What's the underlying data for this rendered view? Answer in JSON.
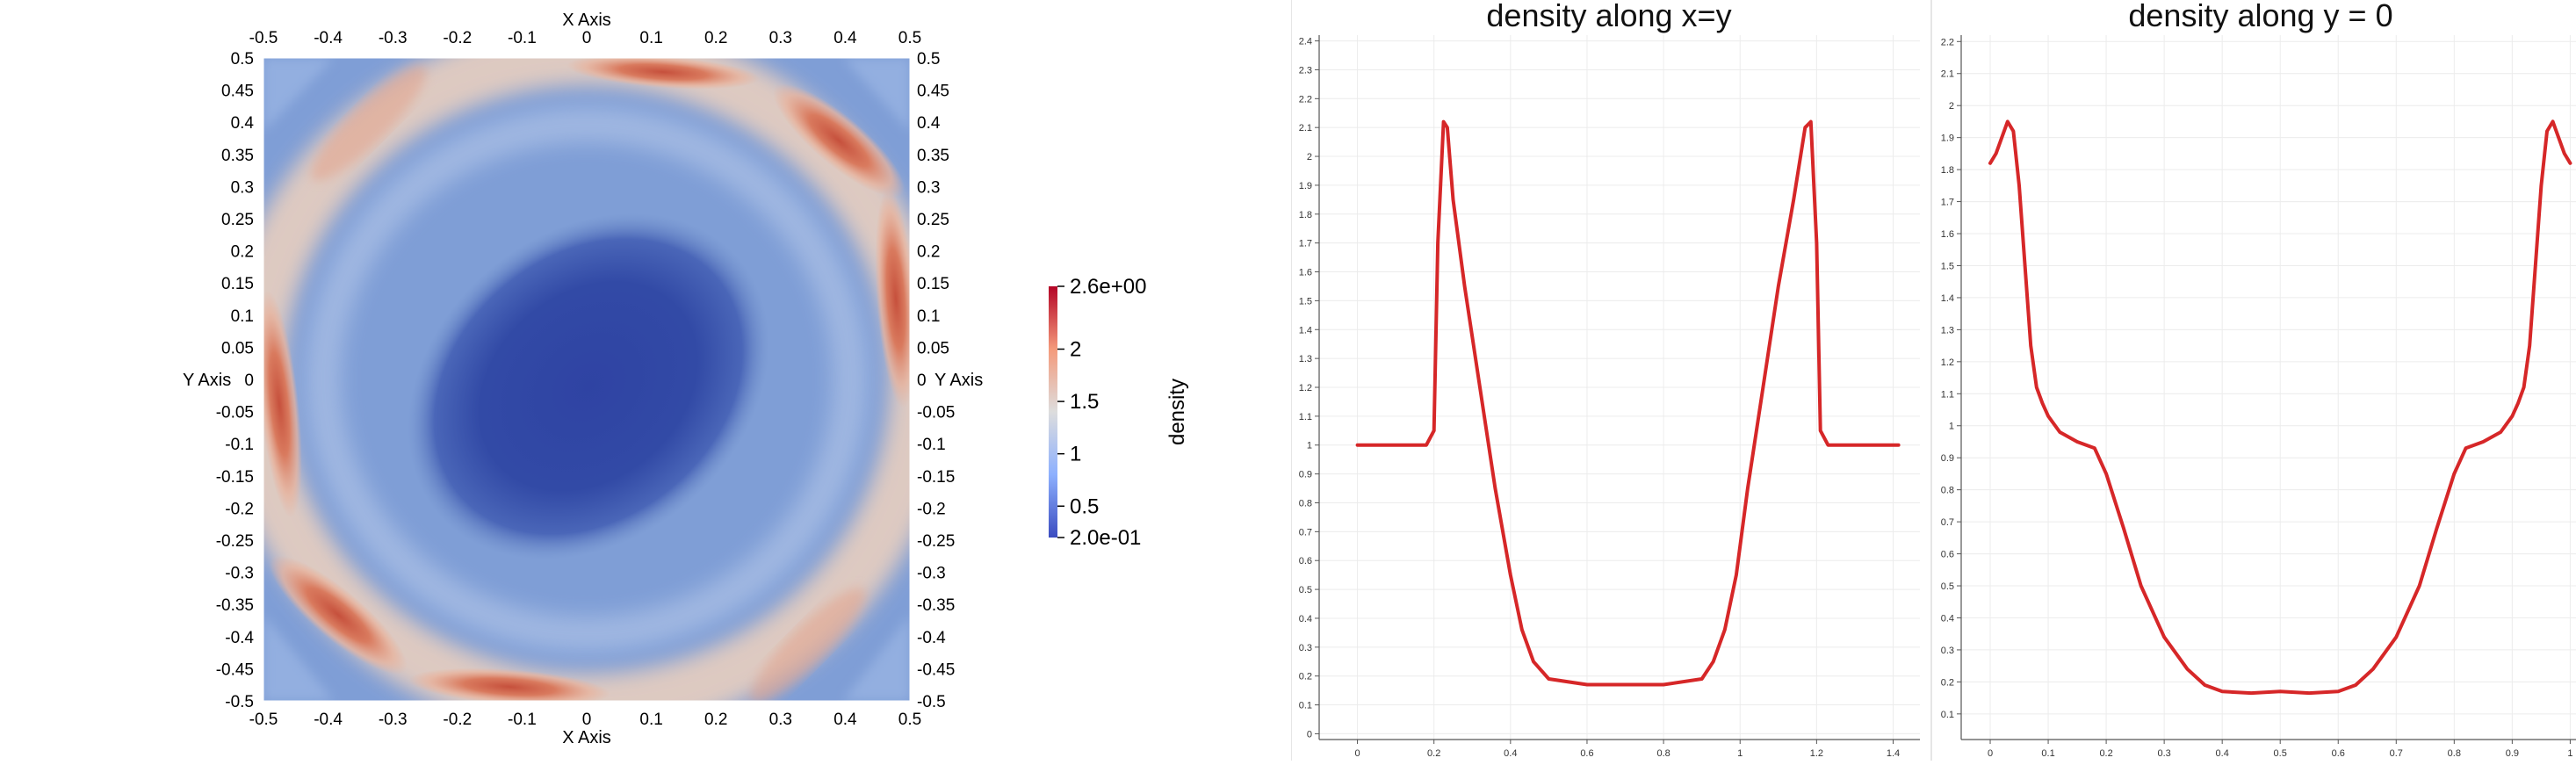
{
  "chart_data": [
    {
      "type": "heatmap",
      "title": "",
      "xlabel": "X Axis",
      "ylabel": "Y Axis",
      "xlim": [
        -0.5,
        0.5
      ],
      "ylim": [
        -0.5,
        0.5
      ],
      "x_ticks": [
        "-0.5",
        "-0.4",
        "-0.3",
        "-0.2",
        "-0.1",
        "0",
        "0.1",
        "0.2",
        "0.3",
        "0.4",
        "0.5"
      ],
      "y_ticks": [
        "0.5",
        "0.45",
        "0.4",
        "0.35",
        "0.3",
        "0.25",
        "0.2",
        "0.15",
        "0.1",
        "0.05",
        "0",
        "-0.05",
        "-0.1",
        "-0.15",
        "-0.2",
        "-0.25",
        "-0.3",
        "-0.35",
        "-0.4",
        "-0.45",
        "-0.5"
      ],
      "colorbar": {
        "label": "density",
        "range": [
          0.2,
          2.6
        ],
        "tick_labels": [
          "2.6e+00",
          "2",
          "1.5",
          "1",
          "0.5",
          "2.0e-01"
        ],
        "tick_values": [
          2.6,
          2.0,
          1.5,
          1.0,
          0.5,
          0.2
        ]
      },
      "colormap": [
        "#3b4cc0",
        "#dddddd",
        "#b40426"
      ]
    },
    {
      "type": "line",
      "title": "density along x=y",
      "xlabel": "",
      "ylabel": "",
      "xlim": [
        -0.1,
        1.47
      ],
      "ylim": [
        -0.02,
        2.42
      ],
      "x_ticks": [
        0,
        0.2,
        0.4,
        0.6,
        0.8,
        1,
        1.2,
        1.4
      ],
      "y_ticks": [
        0,
        0.1,
        0.2,
        0.3,
        0.4,
        0.5,
        0.6,
        0.7,
        0.8,
        0.9,
        1,
        1.1,
        1.2,
        1.3,
        1.4,
        1.5,
        1.6,
        1.7,
        1.8,
        1.9,
        2,
        2.1,
        2.2,
        2.3,
        2.4
      ],
      "grid": true,
      "series": [
        {
          "color": "#d62728",
          "x": [
            0,
            0.18,
            0.2,
            0.21,
            0.225,
            0.235,
            0.25,
            0.28,
            0.32,
            0.36,
            0.4,
            0.43,
            0.46,
            0.5,
            0.6,
            0.8,
            0.9,
            0.93,
            0.96,
            0.99,
            1.02,
            1.06,
            1.1,
            1.14,
            1.17,
            1.185,
            1.2,
            1.21,
            1.23,
            1.24,
            1.414
          ],
          "y": [
            1,
            1,
            1.05,
            1.7,
            2.12,
            2.1,
            1.85,
            1.55,
            1.2,
            0.85,
            0.55,
            0.36,
            0.25,
            0.19,
            0.17,
            0.17,
            0.19,
            0.25,
            0.36,
            0.55,
            0.85,
            1.2,
            1.55,
            1.85,
            2.1,
            2.12,
            1.7,
            1.05,
            1,
            1,
            1
          ]
        }
      ]
    },
    {
      "type": "line",
      "title": "density along y = 0",
      "xlabel": "",
      "ylabel": "",
      "xlim": [
        -0.05,
        1.01
      ],
      "ylim": [
        0.02,
        2.22
      ],
      "x_ticks": [
        0,
        0.1,
        0.2,
        0.3,
        0.4,
        0.5,
        0.6,
        0.7,
        0.8,
        0.9,
        1
      ],
      "y_ticks": [
        0.1,
        0.2,
        0.3,
        0.4,
        0.5,
        0.6,
        0.7,
        0.8,
        0.9,
        1,
        1.1,
        1.2,
        1.3,
        1.4,
        1.5,
        1.6,
        1.7,
        1.8,
        1.9,
        2,
        2.1,
        2.2
      ],
      "grid": true,
      "series": [
        {
          "color": "#d62728",
          "x": [
            0,
            0.01,
            0.02,
            0.03,
            0.04,
            0.05,
            0.06,
            0.07,
            0.08,
            0.09,
            0.1,
            0.12,
            0.15,
            0.18,
            0.2,
            0.23,
            0.26,
            0.3,
            0.34,
            0.37,
            0.4,
            0.45,
            0.5,
            0.55,
            0.6,
            0.63,
            0.66,
            0.7,
            0.74,
            0.77,
            0.8,
            0.82,
            0.85,
            0.88,
            0.9,
            0.91,
            0.92,
            0.93,
            0.94,
            0.95,
            0.96,
            0.97,
            0.98,
            0.99,
            1
          ],
          "y": [
            1.82,
            1.85,
            1.9,
            1.95,
            1.92,
            1.75,
            1.5,
            1.25,
            1.12,
            1.07,
            1.03,
            0.98,
            0.95,
            0.93,
            0.85,
            0.68,
            0.5,
            0.34,
            0.24,
            0.19,
            0.17,
            0.165,
            0.17,
            0.165,
            0.17,
            0.19,
            0.24,
            0.34,
            0.5,
            0.68,
            0.85,
            0.93,
            0.95,
            0.98,
            1.03,
            1.07,
            1.12,
            1.25,
            1.5,
            1.75,
            1.92,
            1.95,
            1.9,
            1.85,
            1.82
          ]
        }
      ]
    }
  ]
}
